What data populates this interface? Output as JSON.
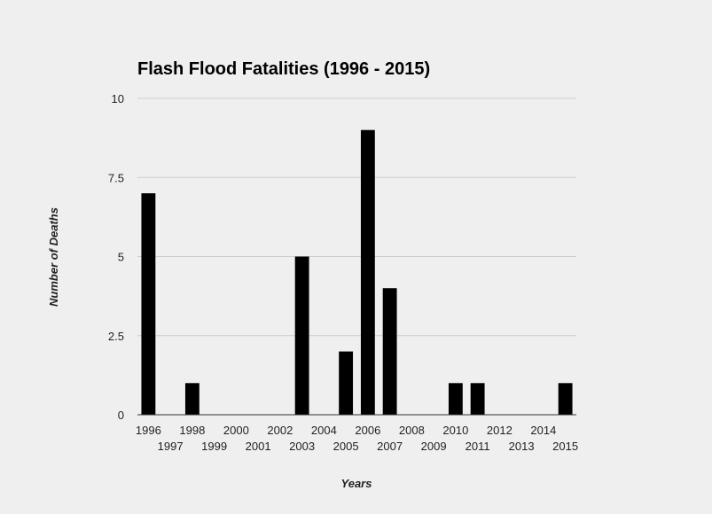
{
  "chart_data": {
    "type": "bar",
    "title": "Flash Flood Fatalities (1996 - 2015)",
    "xlabel": "Years",
    "ylabel": "Number of Deaths",
    "categories": [
      "1996",
      "1997",
      "1998",
      "1999",
      "2000",
      "2001",
      "2002",
      "2003",
      "2004",
      "2005",
      "2006",
      "2007",
      "2008",
      "2009",
      "2010",
      "2011",
      "2012",
      "2013",
      "2014",
      "2015"
    ],
    "values": [
      7,
      0,
      1,
      0,
      0,
      0,
      0,
      5,
      0,
      2,
      9,
      4,
      0,
      0,
      1,
      1,
      0,
      0,
      0,
      1
    ],
    "ylim": [
      0,
      10
    ],
    "yticks": [
      0,
      2.5,
      5,
      7.5,
      10
    ],
    "ytick_labels": [
      "0",
      "2.5",
      "5",
      "7.5",
      "10"
    ],
    "grid": true,
    "legend": "none",
    "bar_color": "#000000"
  }
}
